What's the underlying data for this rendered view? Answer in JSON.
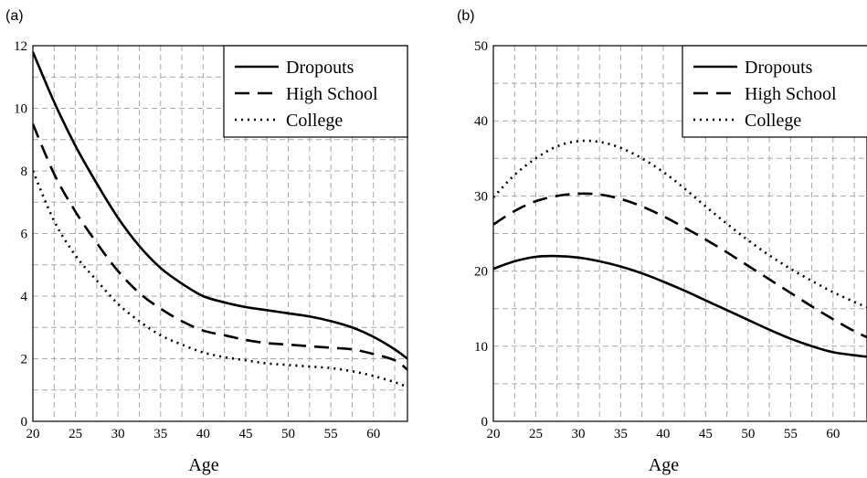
{
  "chart_data": [
    {
      "panel_label": "(a)",
      "type": "line",
      "xlabel": "Age",
      "ylabel": "",
      "xlim": [
        20,
        64
      ],
      "ylim": [
        0,
        12
      ],
      "xticks": [
        20,
        25,
        30,
        35,
        40,
        45,
        50,
        55,
        60
      ],
      "yticks": [
        0,
        2,
        4,
        6,
        8,
        10,
        12
      ],
      "grid": true,
      "legend_position": "top-right",
      "series": [
        {
          "name": "Dropouts",
          "style": "solid",
          "x": [
            20,
            22.5,
            25,
            27.5,
            30,
            32.5,
            35,
            37.5,
            40,
            42.5,
            45,
            47.5,
            50,
            52.5,
            55,
            57.5,
            60,
            62.5,
            64
          ],
          "y": [
            11.8,
            10.2,
            8.8,
            7.6,
            6.5,
            5.6,
            4.9,
            4.4,
            4.0,
            3.8,
            3.65,
            3.55,
            3.45,
            3.35,
            3.2,
            3.0,
            2.7,
            2.3,
            2.0
          ]
        },
        {
          "name": "High School",
          "style": "dashed",
          "x": [
            20,
            22.5,
            25,
            27.5,
            30,
            32.5,
            35,
            37.5,
            40,
            42.5,
            45,
            47.5,
            50,
            52.5,
            55,
            57.5,
            60,
            62.5,
            64
          ],
          "y": [
            9.5,
            7.9,
            6.7,
            5.7,
            4.8,
            4.1,
            3.6,
            3.2,
            2.9,
            2.75,
            2.6,
            2.5,
            2.45,
            2.4,
            2.35,
            2.3,
            2.15,
            1.95,
            1.65
          ]
        },
        {
          "name": "College",
          "style": "dotted",
          "x": [
            20,
            22.5,
            25,
            27.5,
            30,
            32.5,
            35,
            37.5,
            40,
            42.5,
            45,
            47.5,
            50,
            52.5,
            55,
            57.5,
            60,
            62.5,
            64
          ],
          "y": [
            8.0,
            6.4,
            5.3,
            4.5,
            3.75,
            3.2,
            2.75,
            2.45,
            2.2,
            2.05,
            1.95,
            1.85,
            1.8,
            1.75,
            1.7,
            1.6,
            1.45,
            1.25,
            1.1
          ]
        }
      ]
    },
    {
      "panel_label": "(b)",
      "type": "line",
      "xlabel": "Age",
      "ylabel": "",
      "xlim": [
        20,
        64
      ],
      "ylim": [
        0,
        50
      ],
      "xticks": [
        20,
        25,
        30,
        35,
        40,
        45,
        50,
        55,
        60
      ],
      "yticks": [
        0,
        10,
        20,
        30,
        40,
        50
      ],
      "grid": true,
      "legend_position": "top-right",
      "series": [
        {
          "name": "Dropouts",
          "style": "solid",
          "x": [
            20,
            22.5,
            25,
            27.5,
            30,
            32.5,
            35,
            37.5,
            40,
            42.5,
            45,
            47.5,
            50,
            52.5,
            55,
            57.5,
            60,
            62.5,
            64
          ],
          "y": [
            20.3,
            21.3,
            21.9,
            22.0,
            21.8,
            21.3,
            20.6,
            19.7,
            18.6,
            17.4,
            16.1,
            14.8,
            13.5,
            12.2,
            11.0,
            10.0,
            9.2,
            8.8,
            8.6
          ]
        },
        {
          "name": "High School",
          "style": "dashed",
          "x": [
            20,
            22.5,
            25,
            27.5,
            30,
            32.5,
            35,
            37.5,
            40,
            42.5,
            45,
            47.5,
            50,
            52.5,
            55,
            57.5,
            60,
            62.5,
            64
          ],
          "y": [
            26.2,
            28.0,
            29.3,
            30.0,
            30.3,
            30.2,
            29.6,
            28.6,
            27.3,
            25.8,
            24.2,
            22.5,
            20.7,
            18.9,
            17.1,
            15.3,
            13.6,
            12.0,
            11.2
          ]
        },
        {
          "name": "College",
          "style": "dotted",
          "x": [
            20,
            22.5,
            25,
            27.5,
            30,
            32.5,
            35,
            37.5,
            40,
            42.5,
            45,
            47.5,
            50,
            52.5,
            55,
            57.5,
            60,
            62.5,
            64
          ],
          "y": [
            29.8,
            32.8,
            35.0,
            36.6,
            37.3,
            37.2,
            36.4,
            35.0,
            33.2,
            31.0,
            28.6,
            26.3,
            24.1,
            22.1,
            20.3,
            18.7,
            17.2,
            15.9,
            15.2
          ]
        }
      ]
    }
  ]
}
